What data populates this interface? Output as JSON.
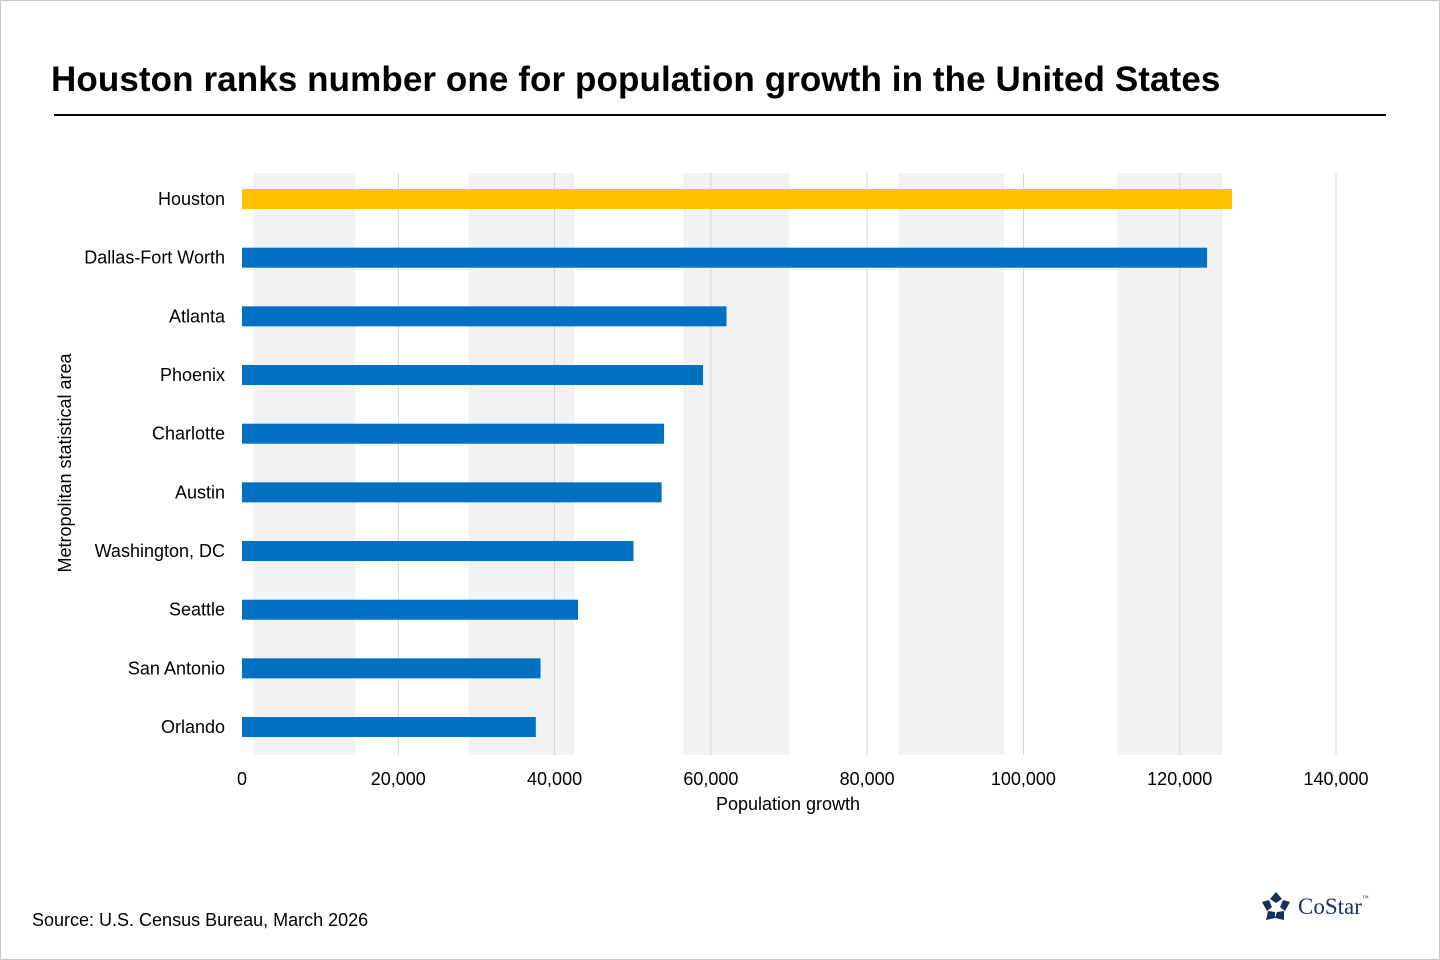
{
  "chart_data": {
    "type": "bar",
    "orientation": "horizontal",
    "title": "Houston ranks number one for population growth in the United States",
    "xlabel": "Population growth",
    "ylabel": "Metropolitan statistical area",
    "categories": [
      "Houston",
      "Dallas-Fort Worth",
      "Atlanta",
      "Phoenix",
      "Charlotte",
      "Austin",
      "Washington, DC",
      "Seattle",
      "San Antonio",
      "Orlando"
    ],
    "values": [
      126700,
      123500,
      62000,
      59000,
      54000,
      53700,
      50100,
      43000,
      38200,
      37600
    ],
    "highlight": "Houston",
    "xlim": [
      0,
      140000
    ],
    "xticks": [
      0,
      20000,
      40000,
      60000,
      80000,
      100000,
      120000,
      140000
    ],
    "xtick_labels": [
      "0",
      "20,000",
      "40,000",
      "60,000",
      "80,000",
      "100,000",
      "120,000",
      "140,000"
    ],
    "grid": "vertical",
    "colors": {
      "bar": "#0070C0",
      "highlight": "#FFC000",
      "band": "#f2f2f2",
      "grid": "#d4d4d4"
    }
  },
  "footer": {
    "source": "Source: U.S. Census Bureau, March 2026",
    "logo_text": "CoStar",
    "logo_tm": "™"
  }
}
